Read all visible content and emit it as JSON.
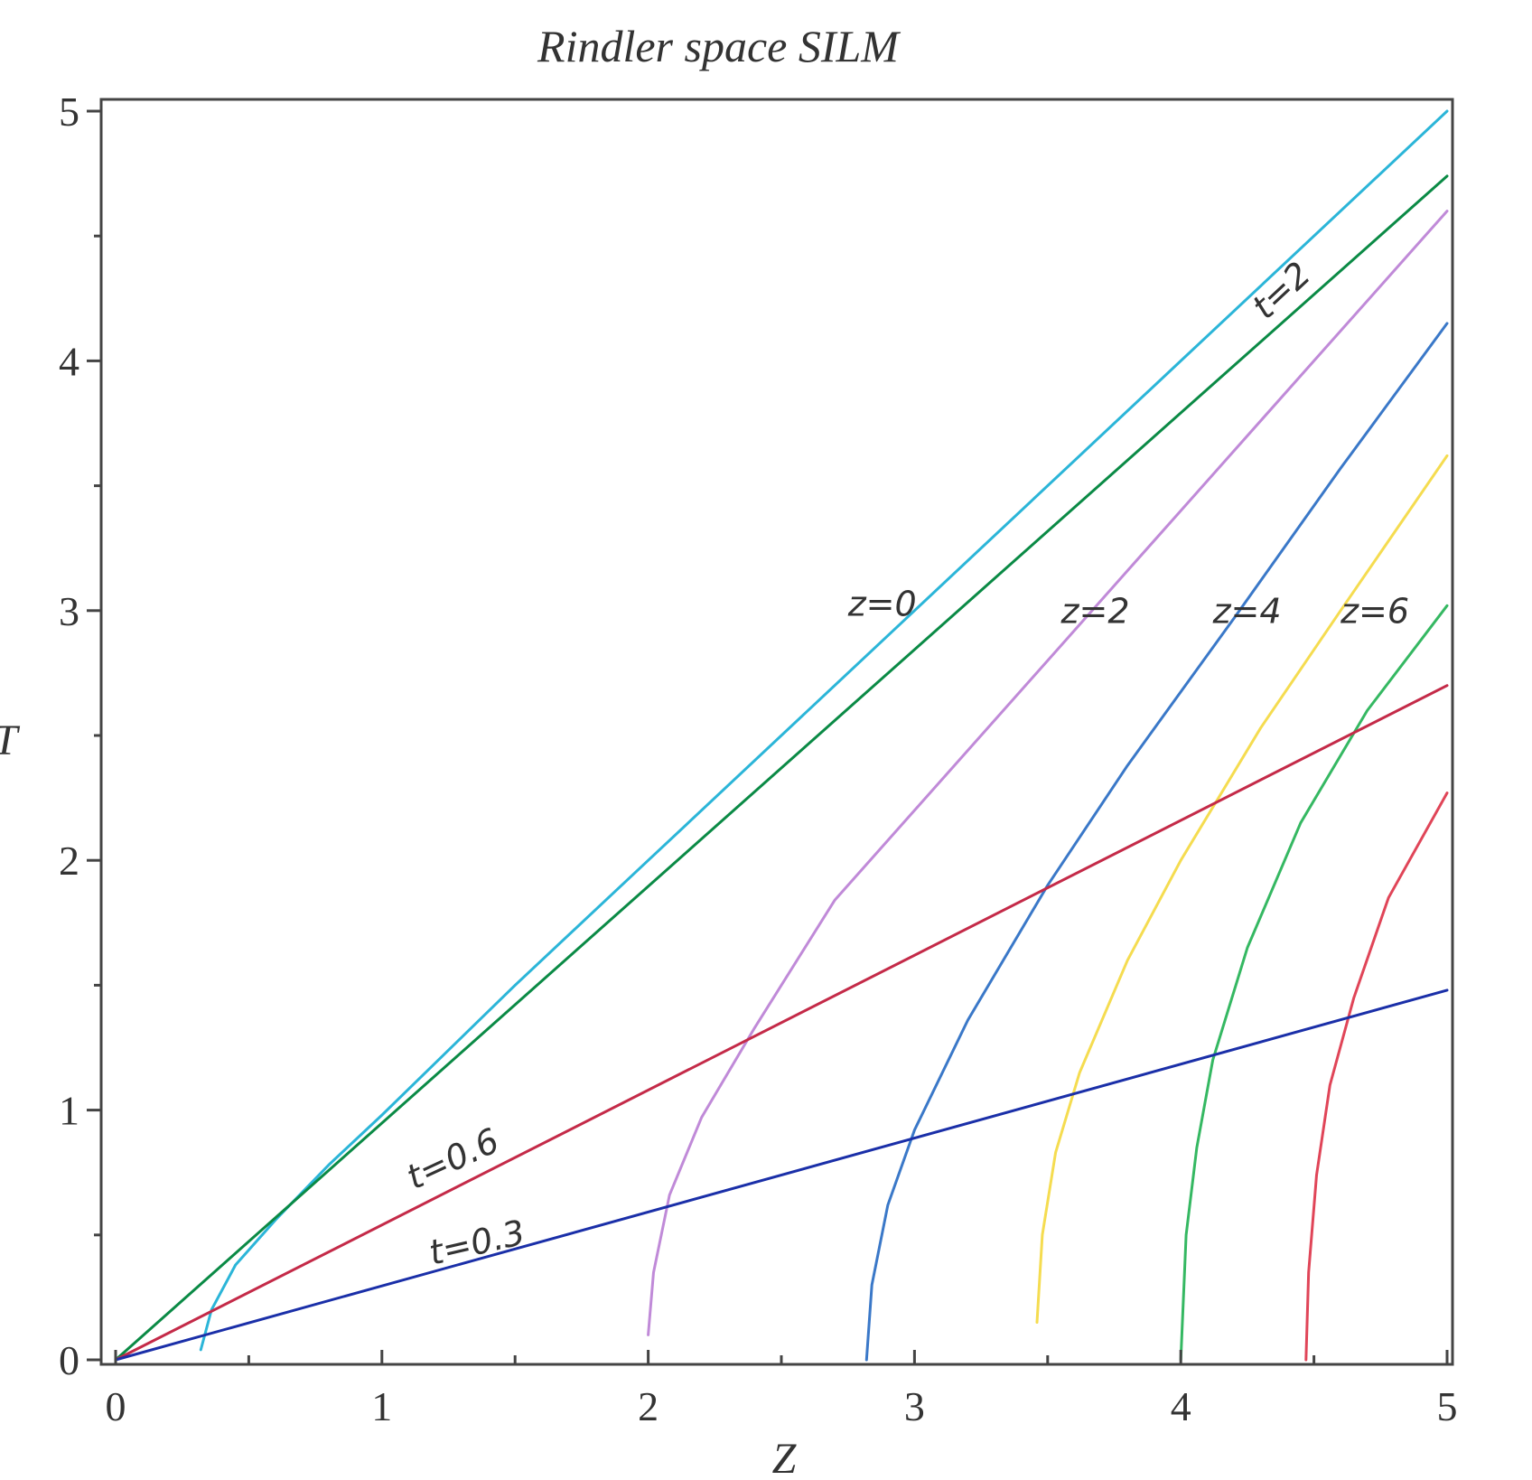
{
  "chart_data": {
    "type": "line",
    "title": "Rindler space SILM",
    "xlabel": "Z",
    "ylabel": "T",
    "xlim": [
      0,
      5
    ],
    "ylim": [
      0,
      5
    ],
    "xticks": [
      0,
      1,
      2,
      3,
      4,
      5
    ],
    "yticks": [
      0,
      1,
      2,
      3,
      4,
      5
    ],
    "x_minor_step": 0.5,
    "y_minor_step": 0.5,
    "grid": false,
    "legend": "none",
    "series": [
      {
        "kind": "constant-z",
        "color": "#2bb5d8",
        "x": [
          0.32,
          0.36,
          0.45,
          0.6,
          0.8,
          1.0,
          1.5,
          2.0,
          3.0,
          4.0,
          5.0
        ],
        "y": [
          0.04,
          0.2,
          0.38,
          0.56,
          0.78,
          0.98,
          1.5,
          2.0,
          3.0,
          4.0,
          5.0
        ]
      },
      {
        "kind": "constant-z",
        "color": "#c08ad8",
        "x": [
          2.0,
          2.02,
          2.08,
          2.2,
          2.4,
          2.7,
          3.0,
          3.5,
          4.0,
          4.5,
          5.0
        ],
        "y": [
          0.1,
          0.35,
          0.66,
          0.97,
          1.33,
          1.84,
          2.2,
          2.8,
          3.4,
          4.0,
          4.6
        ]
      },
      {
        "kind": "constant-z",
        "color": "#3a78c8",
        "x": [
          2.82,
          2.84,
          2.9,
          3.0,
          3.2,
          3.5,
          3.8,
          4.2,
          4.6,
          5.0
        ],
        "y": [
          0.0,
          0.3,
          0.62,
          0.92,
          1.36,
          1.9,
          2.38,
          2.97,
          3.57,
          4.15
        ]
      },
      {
        "kind": "constant-z",
        "color": "#f5dc50",
        "x": [
          3.46,
          3.48,
          3.53,
          3.62,
          3.8,
          4.0,
          4.3,
          4.6,
          5.0
        ],
        "y": [
          0.15,
          0.5,
          0.83,
          1.15,
          1.6,
          2.0,
          2.53,
          3.0,
          3.62
        ]
      },
      {
        "kind": "constant-z",
        "color": "#35b862",
        "x": [
          4.0,
          4.02,
          4.06,
          4.12,
          4.25,
          4.45,
          4.7,
          5.0
        ],
        "y": [
          0.0,
          0.5,
          0.85,
          1.2,
          1.65,
          2.15,
          2.6,
          3.02
        ]
      },
      {
        "kind": "constant-z",
        "color": "#e04558",
        "x": [
          4.47,
          4.48,
          4.51,
          4.56,
          4.65,
          4.78,
          5.0
        ],
        "y": [
          0.0,
          0.35,
          0.74,
          1.1,
          1.45,
          1.85,
          2.27
        ]
      },
      {
        "kind": "constant-t",
        "color": "#0a8a45",
        "x": [
          0,
          5.0
        ],
        "y": [
          0,
          4.74
        ]
      },
      {
        "kind": "constant-t",
        "color": "#c42a48",
        "x": [
          0,
          5.0
        ],
        "y": [
          0,
          2.7
        ]
      },
      {
        "kind": "constant-t",
        "color": "#1a2fa8",
        "x": [
          0,
          5.0
        ],
        "y": [
          0,
          1.48
        ]
      }
    ],
    "annotations": [
      {
        "text": "z=0",
        "x": 2.75,
        "y": 2.98,
        "rotate": 0
      },
      {
        "text": "z=2",
        "x": 3.55,
        "y": 2.95,
        "rotate": 0
      },
      {
        "text": "z=4",
        "x": 4.12,
        "y": 2.95,
        "rotate": 0
      },
      {
        "text": "z=6",
        "x": 4.6,
        "y": 2.95,
        "rotate": 0
      },
      {
        "text": "t=2",
        "x": 4.32,
        "y": 4.16,
        "rotate": -43
      },
      {
        "text": "t=0.6",
        "x": 1.12,
        "y": 0.68,
        "rotate": -25
      },
      {
        "text": "t=0.3",
        "x": 1.19,
        "y": 0.38,
        "rotate": -13
      }
    ]
  }
}
